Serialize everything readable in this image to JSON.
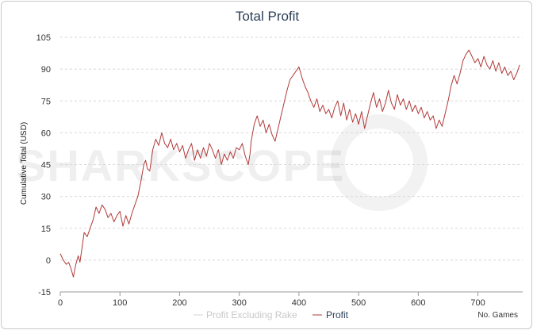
{
  "chart_data": {
    "type": "line",
    "title": "Total Profit",
    "ylabel": "Cumulative Total (USD)",
    "x_note": "No. Games",
    "xlim": [
      0,
      775
    ],
    "ylim": [
      -15,
      105
    ],
    "x_ticks": [
      0,
      100,
      200,
      300,
      400,
      500,
      600,
      700
    ],
    "y_ticks": [
      -15,
      0,
      15,
      30,
      45,
      60,
      75,
      90,
      105
    ],
    "grid": true,
    "legend_position": "bottom-right",
    "watermark": "SHARKSCOPE",
    "series": [
      {
        "name": "Profit Excluding Rake",
        "color": "#d3d3d3",
        "visible": false,
        "x": [],
        "y": []
      },
      {
        "name": "Profit",
        "color": "#b23a3a",
        "visible": true,
        "x": [
          0,
          5,
          10,
          14,
          18,
          22,
          26,
          30,
          33,
          36,
          40,
          45,
          50,
          55,
          60,
          65,
          70,
          75,
          80,
          85,
          90,
          95,
          100,
          105,
          110,
          115,
          120,
          125,
          130,
          135,
          140,
          143,
          146,
          150,
          155,
          160,
          165,
          170,
          175,
          180,
          185,
          190,
          195,
          200,
          205,
          210,
          215,
          220,
          225,
          230,
          235,
          240,
          245,
          250,
          255,
          260,
          265,
          270,
          275,
          280,
          285,
          290,
          295,
          300,
          305,
          310,
          315,
          318,
          320,
          325,
          330,
          335,
          340,
          345,
          350,
          355,
          360,
          365,
          370,
          375,
          380,
          385,
          390,
          395,
          400,
          405,
          410,
          415,
          420,
          425,
          430,
          435,
          440,
          445,
          450,
          455,
          460,
          465,
          470,
          475,
          480,
          485,
          490,
          495,
          500,
          505,
          510,
          515,
          520,
          525,
          530,
          535,
          540,
          545,
          550,
          555,
          560,
          565,
          570,
          575,
          580,
          585,
          590,
          595,
          600,
          605,
          610,
          615,
          620,
          625,
          630,
          635,
          640,
          645,
          650,
          655,
          660,
          665,
          670,
          675,
          680,
          685,
          690,
          695,
          700,
          705,
          710,
          715,
          720,
          725,
          730,
          735,
          740,
          745,
          750,
          755,
          760,
          765,
          770
        ],
        "y": [
          3,
          0,
          -2,
          -1,
          -4,
          -8,
          -2,
          2,
          -1,
          5,
          13,
          11,
          15,
          19,
          25,
          22,
          26,
          24,
          20,
          22,
          18,
          21,
          23,
          16,
          21,
          17,
          22,
          26,
          30,
          37,
          45,
          47,
          43,
          42,
          52,
          57,
          54,
          60,
          55,
          53,
          57,
          52,
          55,
          51,
          54,
          48,
          52,
          55,
          47,
          52,
          48,
          53,
          49,
          55,
          52,
          48,
          52,
          45,
          50,
          47,
          51,
          48,
          53,
          52,
          55,
          49,
          45,
          50,
          56,
          64,
          68,
          63,
          66,
          60,
          64,
          59,
          56,
          62,
          68,
          74,
          80,
          85,
          87,
          89,
          91,
          86,
          82,
          79,
          75,
          72,
          76,
          70,
          73,
          69,
          71,
          67,
          72,
          75,
          68,
          74,
          66,
          71,
          65,
          69,
          64,
          70,
          62,
          68,
          74,
          79,
          72,
          76,
          70,
          74,
          80,
          74,
          71,
          78,
          73,
          76,
          71,
          75,
          70,
          73,
          69,
          72,
          67,
          70,
          66,
          68,
          62,
          66,
          63,
          69,
          75,
          82,
          87,
          83,
          88,
          94,
          97,
          99,
          96,
          93,
          95,
          91,
          96,
          92,
          90,
          94,
          89,
          93,
          88,
          91,
          87,
          89,
          85,
          88,
          92
        ]
      }
    ]
  }
}
